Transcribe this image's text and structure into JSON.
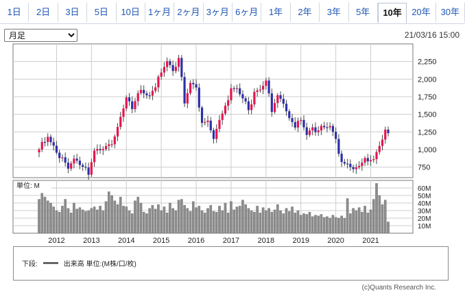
{
  "tabs": [
    {
      "label": "1日"
    },
    {
      "label": "2日"
    },
    {
      "label": "3日"
    },
    {
      "label": "5日"
    },
    {
      "label": "10日"
    },
    {
      "label": "1ヶ月"
    },
    {
      "label": "2ヶ月"
    },
    {
      "label": "3ヶ月"
    },
    {
      "label": "6ヶ月"
    },
    {
      "label": "1年"
    },
    {
      "label": "2年"
    },
    {
      "label": "3年"
    },
    {
      "label": "5年"
    },
    {
      "label": "10年",
      "active": true
    },
    {
      "label": "20年"
    },
    {
      "label": "30年"
    }
  ],
  "period_select": {
    "value": "月足"
  },
  "timestamp": "21/03/16 15:00",
  "volume_label": "単位: M",
  "legend": {
    "prefix": "下段:",
    "text": "出来高 単位:(M株/口/枚)"
  },
  "copyright": "(c)Quants Research Inc.",
  "colors": {
    "up": "#e8144e",
    "down": "#2d2fa8",
    "volume": "#8c8c8c",
    "grid": "#cccccc",
    "accent": "#1f57b5"
  },
  "chart_data": {
    "type": "candlestick",
    "price_axis": {
      "ticks": [
        750,
        1000,
        1250,
        1500,
        1750,
        2000,
        2250
      ],
      "range": [
        600,
        2500
      ]
    },
    "volume_axis": {
      "ticks_labels": [
        "10M",
        "20M",
        "30M",
        "40M",
        "50M",
        "60M"
      ],
      "ticks": [
        10,
        20,
        30,
        40,
        50,
        60
      ],
      "range": [
        0,
        70
      ]
    },
    "x_ticks": [
      "2012",
      "2013",
      "2014",
      "2015",
      "2016",
      "2017",
      "2018",
      "2019",
      "2020",
      "2021"
    ],
    "anchors": [
      {
        "month": 0,
        "close": 1000
      },
      {
        "month": 3,
        "close": 1180
      },
      {
        "month": 7,
        "close": 880
      },
      {
        "month": 10,
        "close": 780
      },
      {
        "month": 12,
        "close": 870
      },
      {
        "month": 17,
        "close": 680
      },
      {
        "month": 19,
        "close": 960
      },
      {
        "month": 23,
        "close": 1020
      },
      {
        "month": 26,
        "close": 1180
      },
      {
        "month": 30,
        "close": 1740
      },
      {
        "month": 32,
        "close": 1620
      },
      {
        "month": 35,
        "close": 1820
      },
      {
        "month": 38,
        "close": 1750
      },
      {
        "month": 41,
        "close": 2000
      },
      {
        "month": 44,
        "close": 2280
      },
      {
        "month": 46,
        "close": 2120
      },
      {
        "month": 48,
        "close": 2300
      },
      {
        "month": 50,
        "close": 1650
      },
      {
        "month": 52,
        "close": 1950
      },
      {
        "month": 54,
        "close": 1880
      },
      {
        "month": 56,
        "close": 1330
      },
      {
        "month": 58,
        "close": 1450
      },
      {
        "month": 60,
        "close": 1150
      },
      {
        "month": 62,
        "close": 1440
      },
      {
        "month": 64,
        "close": 1580
      },
      {
        "month": 66,
        "close": 1870
      },
      {
        "month": 68,
        "close": 1850
      },
      {
        "month": 70,
        "close": 1720
      },
      {
        "month": 72,
        "close": 1560
      },
      {
        "month": 74,
        "close": 1830
      },
      {
        "month": 76,
        "close": 1850
      },
      {
        "month": 78,
        "close": 1980
      },
      {
        "month": 80,
        "close": 1580
      },
      {
        "month": 82,
        "close": 1740
      },
      {
        "month": 84,
        "close": 1650
      },
      {
        "month": 86,
        "close": 1420
      },
      {
        "month": 88,
        "close": 1360
      },
      {
        "month": 90,
        "close": 1420
      },
      {
        "month": 92,
        "close": 1220
      },
      {
        "month": 94,
        "close": 1320
      },
      {
        "month": 96,
        "close": 1270
      },
      {
        "month": 98,
        "close": 1300
      },
      {
        "month": 100,
        "close": 1330
      },
      {
        "month": 102,
        "close": 1150
      },
      {
        "month": 104,
        "close": 780
      },
      {
        "month": 106,
        "close": 820
      },
      {
        "month": 108,
        "close": 720
      },
      {
        "month": 110,
        "close": 800
      },
      {
        "month": 113,
        "close": 840
      },
      {
        "month": 115,
        "close": 860
      },
      {
        "month": 117,
        "close": 1050
      },
      {
        "month": 119,
        "close": 1230
      }
    ],
    "volumes": [
      45,
      53,
      48,
      43,
      40,
      35,
      30,
      28,
      36,
      45,
      33,
      27,
      40,
      32,
      34,
      31,
      29,
      30,
      33,
      35,
      31,
      36,
      30,
      42,
      55,
      50,
      43,
      38,
      48,
      36,
      35,
      30,
      26,
      43,
      48,
      40,
      28,
      26,
      33,
      37,
      32,
      38,
      30,
      35,
      27,
      40,
      33,
      30,
      44,
      45,
      37,
      33,
      29,
      42,
      34,
      36,
      30,
      27,
      33,
      37,
      29,
      28,
      36,
      30,
      40,
      27,
      42,
      31,
      35,
      36,
      44,
      38,
      33,
      30,
      28,
      36,
      27,
      34,
      30,
      33,
      28,
      31,
      38,
      30,
      26,
      33,
      29,
      35,
      27,
      30,
      24,
      26,
      25,
      28,
      22,
      24,
      23,
      25,
      21,
      22,
      20,
      24,
      21,
      20,
      23,
      20,
      46,
      26,
      33,
      30,
      34,
      28,
      36,
      27,
      31,
      45,
      66,
      50,
      38,
      44,
      15
    ]
  }
}
